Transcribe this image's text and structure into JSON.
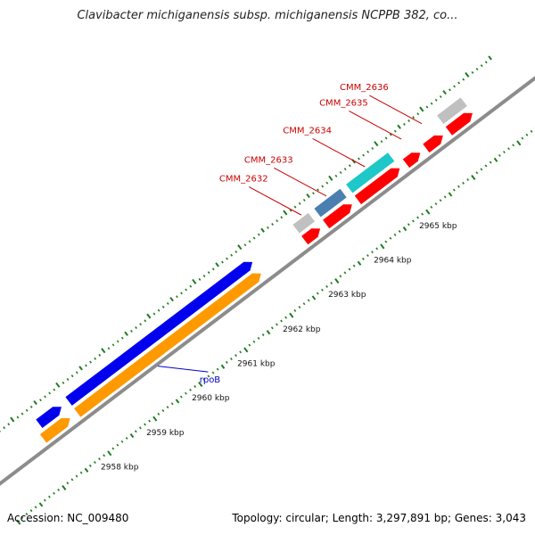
{
  "title": "Clavibacter michiganensis subsp. michiganensis NCPPB 382, co...",
  "footer": {
    "accession": "Accession: NC_009480",
    "topology": "Topology: circular; Length: 3,297,891 bp; Genes: 3,043"
  },
  "colors": {
    "backbone": "#8c8c8c",
    "tick": "#1f7a1f",
    "feature_red": "#ff0000",
    "feature_blue": "#0000ee",
    "feature_orange": "#ff9900",
    "feature_gray": "#c0c0c0",
    "feature_steel": "#4a7fb0",
    "feature_cyan": "#1ec8c8",
    "label_red": "#cc0000",
    "label_blue": "#0000cc"
  },
  "kbp_ticks": [
    {
      "kbp": 2958,
      "label": "2958 kbp"
    },
    {
      "kbp": 2959,
      "label": "2959 kbp"
    },
    {
      "kbp": 2960,
      "label": "2960 kbp"
    },
    {
      "kbp": 2961,
      "label": "2961 kbp"
    },
    {
      "kbp": 2962,
      "label": "2962 kbp"
    },
    {
      "kbp": 2963,
      "label": "2963 kbp"
    },
    {
      "kbp": 2964,
      "label": "2964 kbp"
    },
    {
      "kbp": 2965,
      "label": "2965 kbp"
    }
  ],
  "features": [
    {
      "ring": "inner",
      "start_kbp": 2957.2,
      "end_kbp": 2957.85,
      "strand": "forward",
      "color": "feature_orange"
    },
    {
      "ring": "inner",
      "start_kbp": 2957.95,
      "end_kbp": 2962.05,
      "strand": "forward",
      "color": "feature_orange"
    },
    {
      "ring": "outer",
      "start_kbp": 2957.3,
      "end_kbp": 2957.85,
      "strand": "forward",
      "color": "feature_blue"
    },
    {
      "ring": "outer",
      "start_kbp": 2957.95,
      "end_kbp": 2962.05,
      "strand": "forward",
      "color": "feature_blue"
    },
    {
      "ring": "inner",
      "start_kbp": 2962.95,
      "end_kbp": 2963.35,
      "strand": "forward",
      "color": "feature_red"
    },
    {
      "ring": "inner",
      "start_kbp": 2963.42,
      "end_kbp": 2964.05,
      "strand": "forward",
      "color": "feature_red"
    },
    {
      "ring": "inner",
      "start_kbp": 2964.12,
      "end_kbp": 2965.1,
      "strand": "forward",
      "color": "feature_red"
    },
    {
      "ring": "inner",
      "start_kbp": 2965.18,
      "end_kbp": 2965.55,
      "strand": "forward",
      "color": "feature_red"
    },
    {
      "ring": "inner",
      "start_kbp": 2965.62,
      "end_kbp": 2966.05,
      "strand": "forward",
      "color": "feature_red"
    },
    {
      "ring": "inner",
      "start_kbp": 2966.12,
      "end_kbp": 2966.7,
      "strand": "forward",
      "color": "feature_red"
    },
    {
      "ring": "outer",
      "start_kbp": 2962.95,
      "end_kbp": 2963.35,
      "strand": "none",
      "color": "feature_gray"
    },
    {
      "ring": "outer",
      "start_kbp": 2963.42,
      "end_kbp": 2964.05,
      "strand": "none",
      "color": "feature_steel"
    },
    {
      "ring": "outer",
      "start_kbp": 2964.12,
      "end_kbp": 2965.1,
      "strand": "none",
      "color": "feature_cyan"
    },
    {
      "ring": "outer",
      "start_kbp": 2966.12,
      "end_kbp": 2966.7,
      "strand": "none",
      "color": "feature_gray"
    }
  ],
  "gene_labels": [
    {
      "text": "CMM_2632",
      "color": "label_red",
      "anchor_kbp": 2963.2,
      "ring": "outer"
    },
    {
      "text": "CMM_2633",
      "color": "label_red",
      "anchor_kbp": 2963.75,
      "ring": "outer"
    },
    {
      "text": "CMM_2634",
      "color": "label_red",
      "anchor_kbp": 2964.6,
      "ring": "outer"
    },
    {
      "text": "CMM_2635",
      "color": "label_red",
      "anchor_kbp": 2965.4,
      "ring": "outer"
    },
    {
      "text": "CMM_2636",
      "color": "label_red",
      "anchor_kbp": 2965.85,
      "ring": "outer"
    },
    {
      "text": "rpoB",
      "color": "label_blue",
      "anchor_kbp": 2959.6,
      "ring": "inner"
    }
  ]
}
